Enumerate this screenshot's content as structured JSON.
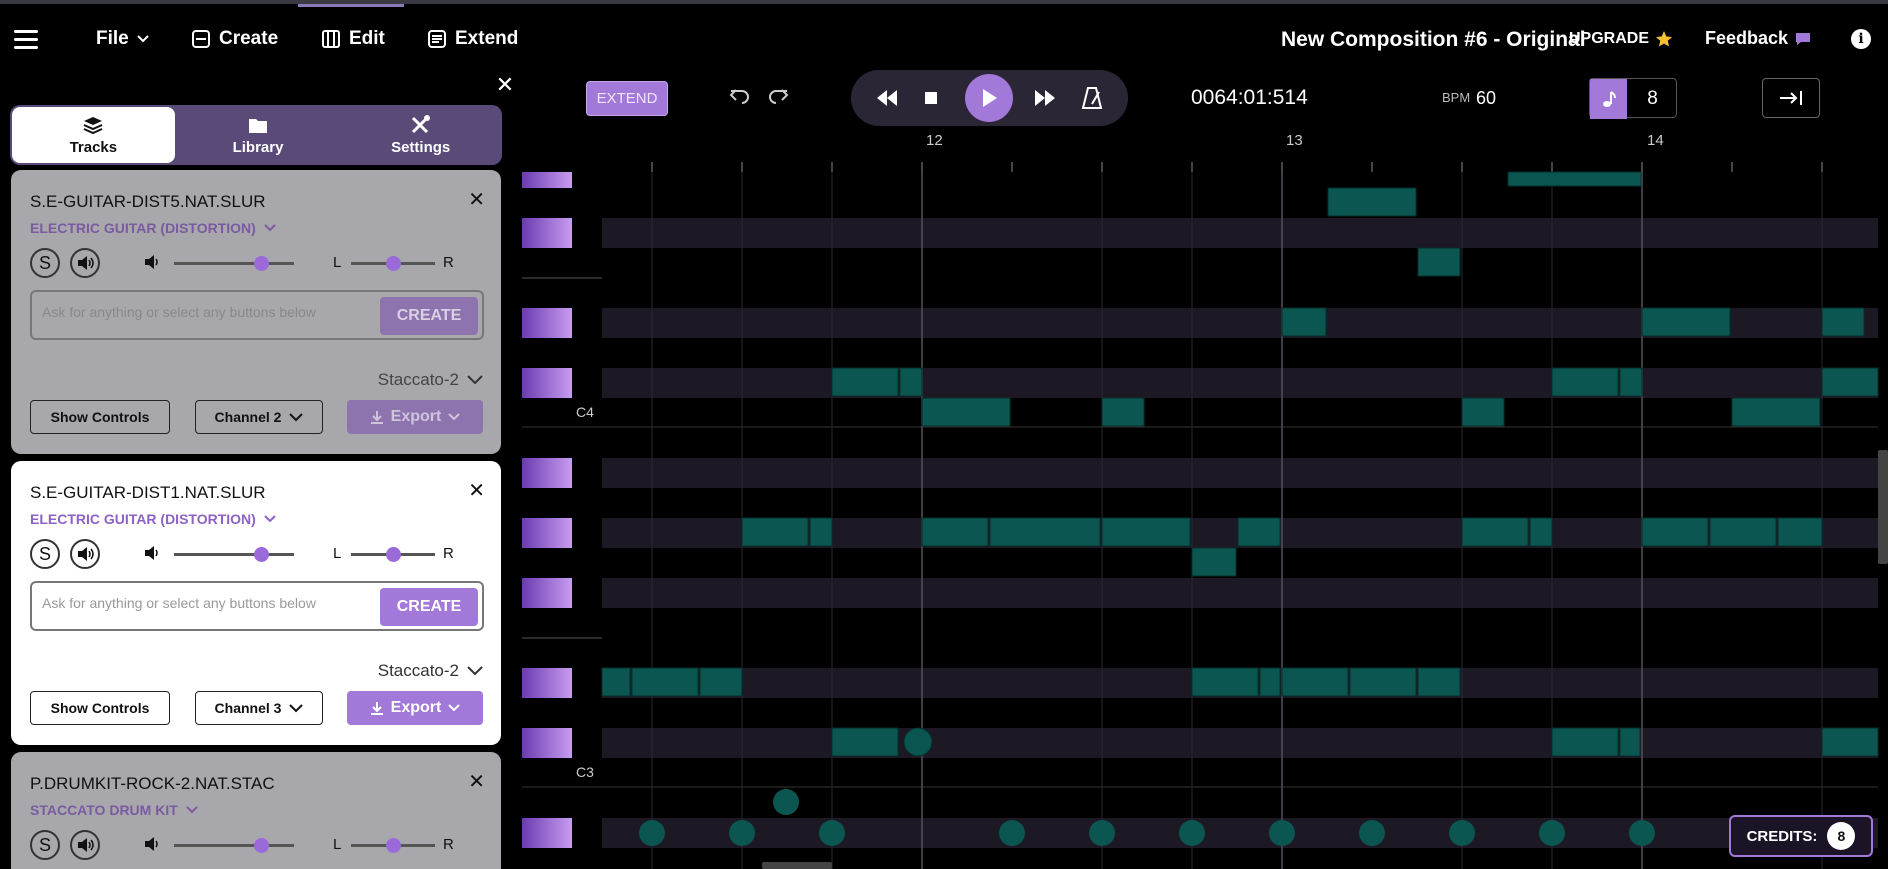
{
  "header": {
    "file": "File",
    "create": "Create",
    "edit": "Edit",
    "extend": "Extend",
    "composition_title": "New Composition #6 - Original",
    "upgrade": "UPGRADE",
    "feedback": "Feedback"
  },
  "panel": {
    "tabs": [
      {
        "label": "Tracks",
        "active": true
      },
      {
        "label": "Library",
        "active": false
      },
      {
        "label": "Settings",
        "active": false
      }
    ],
    "prompt_placeholder": "Ask for anything or select any buttons below",
    "create_label": "CREATE",
    "show_controls_label": "Show Controls",
    "export_label": "Export",
    "tracks": [
      {
        "title": "S.E-GUITAR-DIST5.NAT.SLUR",
        "instrument": "ELECTRIC GUITAR (DISTORTION)",
        "articulation": "Staccato-2",
        "channel": "Channel 2",
        "solo": "S",
        "volume": 0.73,
        "pan": 0.5
      },
      {
        "title": "S.E-GUITAR-DIST1.NAT.SLUR",
        "instrument": "ELECTRIC GUITAR (DISTORTION)",
        "articulation": "Staccato-2",
        "channel": "Channel 3",
        "solo": "S",
        "volume": 0.73,
        "pan": 0.5
      },
      {
        "title": "P.DRUMKIT-ROCK-2.NAT.STAC",
        "instrument": "STACCATO DRUM KIT",
        "solo": "S",
        "volume": 0.73,
        "pan": 0.5
      }
    ]
  },
  "transport": {
    "extend_label": "EXTEND",
    "timecode": "0064:01:514",
    "bpm_label": "BPM",
    "bpm": "60",
    "quantize": "8"
  },
  "roll": {
    "bars": [
      "12",
      "13",
      "14"
    ],
    "c4": "C4",
    "c3": "C3"
  },
  "credits": {
    "label": "CREDITS:",
    "count": "8"
  },
  "colors": {
    "accent": "#a278d8",
    "note": "#0b5650",
    "lane_dark": "#1a1622"
  }
}
